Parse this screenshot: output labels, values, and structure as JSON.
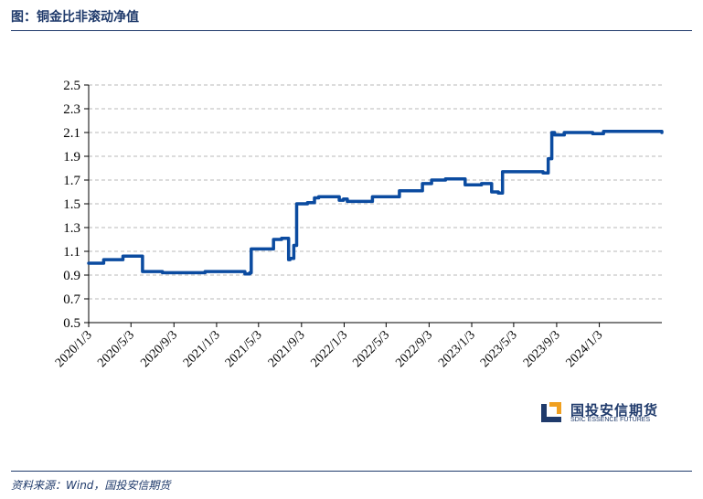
{
  "header": {
    "title": "图：铜金比非滚动净值"
  },
  "footer": {
    "source": "资料来源：Wind，国投安信期货"
  },
  "logo": {
    "name_cn": "国投安信期货",
    "name_en": "SDIC ESSENCE FUTURES",
    "icon": "sdic-logo-icon"
  },
  "colors": {
    "line": "#0b4ba0",
    "text": "#1f3a6b",
    "accent": "#f0a020"
  },
  "chart_data": {
    "type": "line",
    "title": "",
    "xlabel": "",
    "ylabel": "",
    "ylim": [
      0.5,
      2.5
    ],
    "yticks": [
      "2.5",
      "2.3",
      "2.1",
      "1.9",
      "1.7",
      "1.5",
      "1.3",
      "1.1",
      "0.9",
      "0.7",
      "0.5"
    ],
    "xticks": [
      "2020/1/3",
      "2020/5/3",
      "2020/9/3",
      "2021/1/3",
      "2021/5/3",
      "2021/9/3",
      "2022/1/3",
      "2022/5/3",
      "2022/9/3",
      "2023/1/3",
      "2023/5/3",
      "2023/9/3",
      "2024/1/3"
    ],
    "grid": "horizontal-dashed",
    "legend": "none",
    "series": [
      {
        "x": [
          "2020-01-03",
          "2020-02-15",
          "2020-04-10",
          "2020-06-05",
          "2020-07-15",
          "2020-08-01",
          "2020-12-01",
          "2021-01-01",
          "2021-03-25",
          "2021-04-08",
          "2021-04-12",
          "2021-05-15",
          "2021-06-15",
          "2021-06-25",
          "2021-07-08",
          "2021-07-28",
          "2021-08-01",
          "2021-08-12",
          "2021-08-20",
          "2021-09-20",
          "2021-10-10",
          "2021-10-22",
          "2021-12-20",
          "2022-01-01",
          "2022-01-12",
          "2022-03-25",
          "2022-04-01",
          "2022-04-10",
          "2022-06-10",
          "2022-08-15",
          "2022-09-10",
          "2022-10-20",
          "2022-12-15",
          "2023-01-10",
          "2023-01-31",
          "2023-03-01",
          "2023-03-20",
          "2023-04-01",
          "2023-07-15",
          "2023-07-26",
          "2023-08-10",
          "2023-08-20",
          "2023-08-28",
          "2023-09-25",
          "2023-10-10",
          "2023-12-15",
          "2024-01-15",
          "2024-06-30"
        ],
        "y": [
          1.0,
          1.03,
          1.06,
          0.93,
          0.93,
          0.92,
          0.93,
          0.93,
          0.91,
          0.92,
          1.12,
          1.12,
          1.2,
          1.2,
          1.21,
          1.03,
          1.04,
          1.15,
          1.5,
          1.51,
          1.55,
          1.56,
          1.53,
          1.54,
          1.52,
          1.56,
          1.56,
          1.56,
          1.61,
          1.67,
          1.7,
          1.71,
          1.66,
          1.66,
          1.67,
          1.6,
          1.59,
          1.77,
          1.77,
          1.76,
          1.88,
          2.1,
          2.08,
          2.1,
          2.1,
          2.09,
          2.11,
          2.1
        ]
      }
    ]
  }
}
